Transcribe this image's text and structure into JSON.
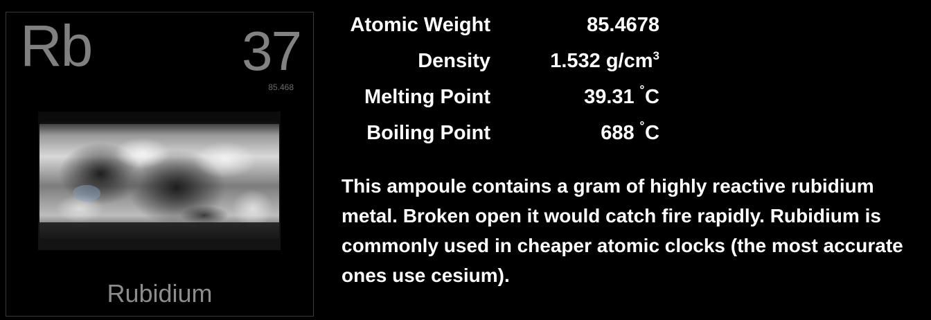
{
  "element": {
    "symbol": "Rb",
    "atomic_number": "37",
    "tile_weight": "85.468",
    "name": "Rubidium"
  },
  "properties": [
    {
      "label": "Atomic Weight",
      "value": "85.4678"
    },
    {
      "label": "Density",
      "value": "1.532 g/cm",
      "superscript": "3"
    },
    {
      "label": "Melting Point",
      "value": "39.31",
      "unit": "C",
      "degree": "˚"
    },
    {
      "label": "Boiling Point",
      "value": "688",
      "unit": "C",
      "degree": "˚"
    }
  ],
  "description": "This ampoule contains a gram of highly reactive rubidium metal.  Broken open it would catch fire rapidly.  Rubidium is commonly used in cheaper atomic clocks (the most accurate ones use cesium).",
  "colors": {
    "background": "#000000",
    "tile_text": "#808080",
    "body_text": "#ffffff"
  }
}
